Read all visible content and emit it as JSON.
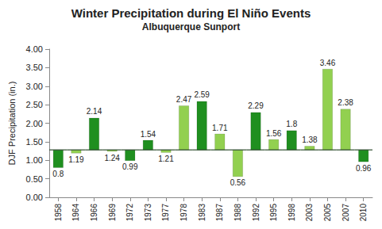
{
  "chart_data": {
    "type": "bar",
    "title": "Winter Precipitation during El Niño Events",
    "subtitle": "Albuquerque Sunport",
    "y_label": "DJF Precipitation (in.)",
    "categories": [
      "1958",
      "1964",
      "1966",
      "1969",
      "1972",
      "1973",
      "1977",
      "1978",
      "1983",
      "1987",
      "1988",
      "1992",
      "1995",
      "1998",
      "2003",
      "2005",
      "2007",
      "2010"
    ],
    "values": [
      0.8,
      1.19,
      2.14,
      1.24,
      0.99,
      1.54,
      1.21,
      2.47,
      2.59,
      1.71,
      0.56,
      2.29,
      1.56,
      1.8,
      1.38,
      3.46,
      2.38,
      0.96
    ],
    "baseline": 1.28,
    "colors": [
      "#1f8f1f",
      "#92d050",
      "#1f8f1f",
      "#92d050",
      "#1f8f1f",
      "#1f8f1f",
      "#92d050",
      "#92d050",
      "#1f8f1f",
      "#92d050",
      "#92d050",
      "#1f8f1f",
      "#92d050",
      "#1f8f1f",
      "#92d050",
      "#92d050",
      "#92d050",
      "#1f8f1f"
    ],
    "ylim": [
      0,
      4
    ],
    "yticks": [
      {
        "value": 0,
        "label": "0.00"
      },
      {
        "value": 0.5,
        "label": "0.50"
      },
      {
        "value": 1,
        "label": "1.00"
      },
      {
        "value": 1.5,
        "label": "1.50"
      },
      {
        "value": 2,
        "label": "2.00"
      },
      {
        "value": 2.5,
        "label": "2.50"
      },
      {
        "value": 3,
        "label": "3.00"
      },
      {
        "value": 3.5,
        "label": "3.50"
      },
      {
        "value": 4,
        "label": "4.00"
      }
    ],
    "grid": false,
    "data_labels": true
  }
}
